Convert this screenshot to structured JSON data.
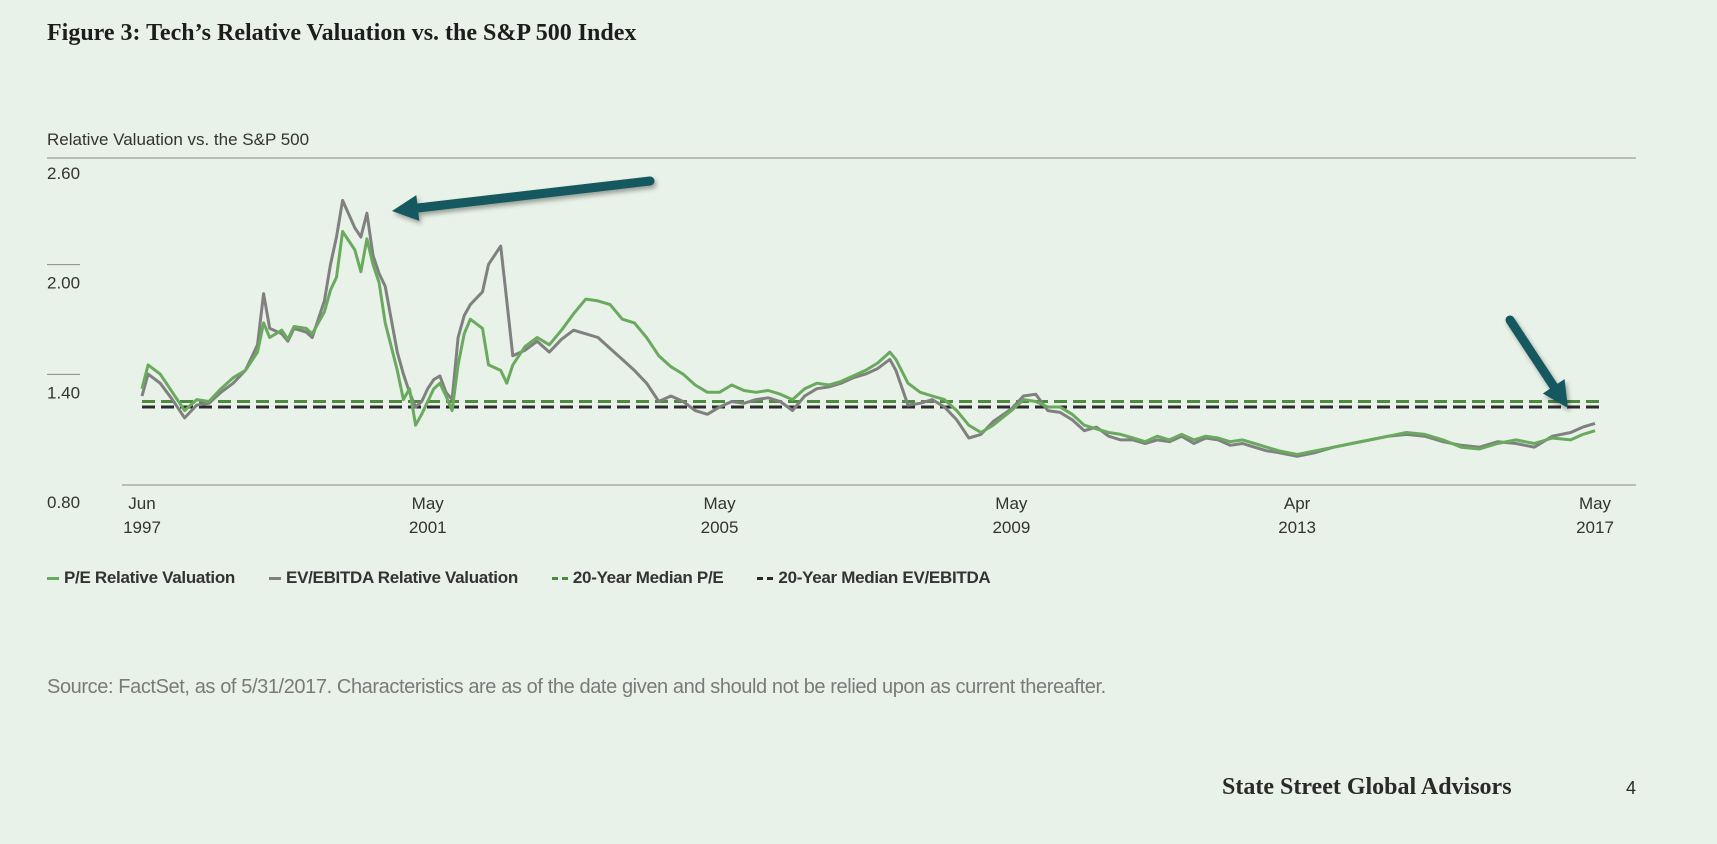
{
  "page": {
    "figure_title": "Figure 3: Tech’s Relative Valuation vs. the S&P 500 Index",
    "source": "Source: FactSet, as of 5/31/2017. Characteristics are as of the date given and should not be relied upon as current thereafter.",
    "brand": "State Street Global Advisors",
    "page_number": "4"
  },
  "colors": {
    "background": "#e8f2e8",
    "pe": "#6aaa5e",
    "ev": "#808080",
    "median_pe": "#4d8a3e",
    "median_ev": "#2b2b2b",
    "arrow": "#14585e"
  },
  "chart_data": {
    "type": "line",
    "ylabel": "Relative Valuation vs. the S&P 500",
    "ylim": [
      0.8,
      2.6
    ],
    "yticks": [
      "0.80",
      "1.40",
      "2.00",
      "2.60"
    ],
    "x_ticks": [
      {
        "date": "1997-06",
        "line1": "Jun",
        "line2": "1997"
      },
      {
        "date": "2001-05",
        "line1": "May",
        "line2": "2001"
      },
      {
        "date": "2005-05",
        "line1": "May",
        "line2": "2005"
      },
      {
        "date": "2009-05",
        "line1": "May",
        "line2": "2009"
      },
      {
        "date": "2013-04",
        "line1": "Apr",
        "line2": "2013"
      },
      {
        "date": "2017-05",
        "line1": "May",
        "line2": "2017"
      }
    ],
    "x_range": [
      "1997-06",
      "2017-05"
    ],
    "series": [
      {
        "name": "P/E Relative Valuation",
        "style": "solid",
        "points": [
          [
            "1997-06",
            1.42
          ],
          [
            "1997-07",
            1.55
          ],
          [
            "1997-09",
            1.5
          ],
          [
            "1997-11",
            1.4
          ],
          [
            "1998-01",
            1.3
          ],
          [
            "1998-03",
            1.36
          ],
          [
            "1998-05",
            1.35
          ],
          [
            "1998-07",
            1.42
          ],
          [
            "1998-09",
            1.48
          ],
          [
            "1998-11",
            1.52
          ],
          [
            "1999-01",
            1.62
          ],
          [
            "1999-02",
            1.78
          ],
          [
            "1999-03",
            1.7
          ],
          [
            "1999-05",
            1.74
          ],
          [
            "1999-06",
            1.69
          ],
          [
            "1999-07",
            1.76
          ],
          [
            "1999-09",
            1.75
          ],
          [
            "1999-10",
            1.72
          ],
          [
            "1999-12",
            1.84
          ],
          [
            "2000-01",
            1.96
          ],
          [
            "2000-02",
            2.03
          ],
          [
            "2000-03",
            2.28
          ],
          [
            "2000-05",
            2.18
          ],
          [
            "2000-06",
            2.06
          ],
          [
            "2000-07",
            2.24
          ],
          [
            "2000-08",
            2.1
          ],
          [
            "2000-09",
            2.0
          ],
          [
            "2000-10",
            1.78
          ],
          [
            "2000-12",
            1.52
          ],
          [
            "2001-01",
            1.36
          ],
          [
            "2001-02",
            1.42
          ],
          [
            "2001-03",
            1.22
          ],
          [
            "2001-04",
            1.28
          ],
          [
            "2001-05",
            1.35
          ],
          [
            "2001-06",
            1.42
          ],
          [
            "2001-07",
            1.45
          ],
          [
            "2001-08",
            1.38
          ],
          [
            "2001-09",
            1.3
          ],
          [
            "2001-10",
            1.55
          ],
          [
            "2001-11",
            1.72
          ],
          [
            "2001-12",
            1.8
          ],
          [
            "2002-02",
            1.75
          ],
          [
            "2002-03",
            1.55
          ],
          [
            "2002-05",
            1.52
          ],
          [
            "2002-06",
            1.45
          ],
          [
            "2002-07",
            1.55
          ],
          [
            "2002-09",
            1.65
          ],
          [
            "2002-11",
            1.7
          ],
          [
            "2003-01",
            1.66
          ],
          [
            "2003-03",
            1.74
          ],
          [
            "2003-05",
            1.83
          ],
          [
            "2003-07",
            1.91
          ],
          [
            "2003-09",
            1.9
          ],
          [
            "2003-11",
            1.88
          ],
          [
            "2004-01",
            1.8
          ],
          [
            "2004-03",
            1.78
          ],
          [
            "2004-05",
            1.7
          ],
          [
            "2004-07",
            1.6
          ],
          [
            "2004-09",
            1.54
          ],
          [
            "2004-11",
            1.5
          ],
          [
            "2005-01",
            1.44
          ],
          [
            "2005-03",
            1.4
          ],
          [
            "2005-05",
            1.4
          ],
          [
            "2005-07",
            1.44
          ],
          [
            "2005-09",
            1.41
          ],
          [
            "2005-11",
            1.4
          ],
          [
            "2006-01",
            1.41
          ],
          [
            "2006-03",
            1.39
          ],
          [
            "2006-05",
            1.36
          ],
          [
            "2006-07",
            1.42
          ],
          [
            "2006-09",
            1.45
          ],
          [
            "2006-11",
            1.44
          ],
          [
            "2007-01",
            1.46
          ],
          [
            "2007-03",
            1.49
          ],
          [
            "2007-05",
            1.52
          ],
          [
            "2007-07",
            1.56
          ],
          [
            "2007-09",
            1.62
          ],
          [
            "2007-10",
            1.58
          ],
          [
            "2007-12",
            1.45
          ],
          [
            "2008-02",
            1.4
          ],
          [
            "2008-04",
            1.38
          ],
          [
            "2008-06",
            1.36
          ],
          [
            "2008-08",
            1.3
          ],
          [
            "2008-10",
            1.22
          ],
          [
            "2008-12",
            1.18
          ],
          [
            "2009-02",
            1.22
          ],
          [
            "2009-05",
            1.3
          ],
          [
            "2009-07",
            1.36
          ],
          [
            "2009-09",
            1.35
          ],
          [
            "2009-11",
            1.32
          ],
          [
            "2010-01",
            1.32
          ],
          [
            "2010-03",
            1.28
          ],
          [
            "2010-05",
            1.22
          ],
          [
            "2010-07",
            1.2
          ],
          [
            "2010-09",
            1.18
          ],
          [
            "2010-11",
            1.17
          ],
          [
            "2011-01",
            1.15
          ],
          [
            "2011-03",
            1.13
          ],
          [
            "2011-05",
            1.16
          ],
          [
            "2011-07",
            1.14
          ],
          [
            "2011-09",
            1.17
          ],
          [
            "2011-11",
            1.14
          ],
          [
            "2012-01",
            1.16
          ],
          [
            "2012-03",
            1.15
          ],
          [
            "2012-05",
            1.13
          ],
          [
            "2012-07",
            1.14
          ],
          [
            "2012-09",
            1.12
          ],
          [
            "2012-11",
            1.1
          ],
          [
            "2013-01",
            1.08
          ],
          [
            "2013-04",
            1.06
          ],
          [
            "2013-07",
            1.08
          ],
          [
            "2013-10",
            1.1
          ],
          [
            "2014-01",
            1.12
          ],
          [
            "2014-04",
            1.14
          ],
          [
            "2014-07",
            1.16
          ],
          [
            "2014-10",
            1.18
          ],
          [
            "2015-01",
            1.17
          ],
          [
            "2015-04",
            1.14
          ],
          [
            "2015-07",
            1.1
          ],
          [
            "2015-10",
            1.09
          ],
          [
            "2016-01",
            1.12
          ],
          [
            "2016-04",
            1.14
          ],
          [
            "2016-07",
            1.12
          ],
          [
            "2016-10",
            1.15
          ],
          [
            "2017-01",
            1.14
          ],
          [
            "2017-03",
            1.17
          ],
          [
            "2017-05",
            1.19
          ]
        ]
      },
      {
        "name": "EV/EBITDA Relative Valuation",
        "style": "solid",
        "points": [
          [
            "1997-06",
            1.38
          ],
          [
            "1997-07",
            1.5
          ],
          [
            "1997-09",
            1.45
          ],
          [
            "1997-11",
            1.36
          ],
          [
            "1998-01",
            1.26
          ],
          [
            "1998-03",
            1.33
          ],
          [
            "1998-05",
            1.34
          ],
          [
            "1998-07",
            1.4
          ],
          [
            "1998-09",
            1.45
          ],
          [
            "1998-11",
            1.52
          ],
          [
            "1999-01",
            1.66
          ],
          [
            "1999-02",
            1.94
          ],
          [
            "1999-03",
            1.75
          ],
          [
            "1999-05",
            1.72
          ],
          [
            "1999-06",
            1.68
          ],
          [
            "1999-07",
            1.75
          ],
          [
            "1999-09",
            1.73
          ],
          [
            "1999-10",
            1.7
          ],
          [
            "1999-12",
            1.9
          ],
          [
            "2000-01",
            2.1
          ],
          [
            "2000-02",
            2.25
          ],
          [
            "2000-03",
            2.45
          ],
          [
            "2000-05",
            2.3
          ],
          [
            "2000-06",
            2.25
          ],
          [
            "2000-07",
            2.38
          ],
          [
            "2000-08",
            2.15
          ],
          [
            "2000-09",
            2.05
          ],
          [
            "2000-10",
            1.98
          ],
          [
            "2000-12",
            1.62
          ],
          [
            "2001-01",
            1.5
          ],
          [
            "2001-02",
            1.4
          ],
          [
            "2001-03",
            1.32
          ],
          [
            "2001-04",
            1.35
          ],
          [
            "2001-05",
            1.42
          ],
          [
            "2001-06",
            1.47
          ],
          [
            "2001-07",
            1.49
          ],
          [
            "2001-08",
            1.4
          ],
          [
            "2001-09",
            1.36
          ],
          [
            "2001-10",
            1.7
          ],
          [
            "2001-11",
            1.82
          ],
          [
            "2001-12",
            1.88
          ],
          [
            "2002-02",
            1.95
          ],
          [
            "2002-03",
            2.1
          ],
          [
            "2002-05",
            2.2
          ],
          [
            "2002-06",
            1.9
          ],
          [
            "2002-07",
            1.6
          ],
          [
            "2002-09",
            1.63
          ],
          [
            "2002-11",
            1.68
          ],
          [
            "2003-01",
            1.62
          ],
          [
            "2003-03",
            1.69
          ],
          [
            "2003-05",
            1.74
          ],
          [
            "2003-07",
            1.72
          ],
          [
            "2003-09",
            1.7
          ],
          [
            "2003-11",
            1.64
          ],
          [
            "2004-01",
            1.58
          ],
          [
            "2004-03",
            1.52
          ],
          [
            "2004-05",
            1.45
          ],
          [
            "2004-07",
            1.35
          ],
          [
            "2004-09",
            1.38
          ],
          [
            "2004-11",
            1.35
          ],
          [
            "2005-01",
            1.3
          ],
          [
            "2005-03",
            1.28
          ],
          [
            "2005-05",
            1.32
          ],
          [
            "2005-07",
            1.35
          ],
          [
            "2005-09",
            1.34
          ],
          [
            "2005-11",
            1.36
          ],
          [
            "2006-01",
            1.37
          ],
          [
            "2006-03",
            1.35
          ],
          [
            "2006-05",
            1.3
          ],
          [
            "2006-07",
            1.38
          ],
          [
            "2006-09",
            1.42
          ],
          [
            "2006-11",
            1.43
          ],
          [
            "2007-01",
            1.45
          ],
          [
            "2007-03",
            1.48
          ],
          [
            "2007-05",
            1.5
          ],
          [
            "2007-07",
            1.53
          ],
          [
            "2007-09",
            1.58
          ],
          [
            "2007-10",
            1.52
          ],
          [
            "2007-12",
            1.33
          ],
          [
            "2008-02",
            1.34
          ],
          [
            "2008-04",
            1.36
          ],
          [
            "2008-06",
            1.32
          ],
          [
            "2008-08",
            1.25
          ],
          [
            "2008-10",
            1.15
          ],
          [
            "2008-12",
            1.17
          ],
          [
            "2009-02",
            1.24
          ],
          [
            "2009-05",
            1.31
          ],
          [
            "2009-07",
            1.38
          ],
          [
            "2009-09",
            1.39
          ],
          [
            "2009-11",
            1.3
          ],
          [
            "2010-01",
            1.29
          ],
          [
            "2010-03",
            1.25
          ],
          [
            "2010-05",
            1.19
          ],
          [
            "2010-07",
            1.21
          ],
          [
            "2010-09",
            1.16
          ],
          [
            "2010-11",
            1.14
          ],
          [
            "2011-01",
            1.14
          ],
          [
            "2011-03",
            1.12
          ],
          [
            "2011-05",
            1.14
          ],
          [
            "2011-07",
            1.13
          ],
          [
            "2011-09",
            1.16
          ],
          [
            "2011-11",
            1.12
          ],
          [
            "2012-01",
            1.15
          ],
          [
            "2012-03",
            1.14
          ],
          [
            "2012-05",
            1.11
          ],
          [
            "2012-07",
            1.12
          ],
          [
            "2012-09",
            1.1
          ],
          [
            "2012-11",
            1.08
          ],
          [
            "2013-01",
            1.07
          ],
          [
            "2013-04",
            1.05
          ],
          [
            "2013-07",
            1.07
          ],
          [
            "2013-10",
            1.1
          ],
          [
            "2014-01",
            1.12
          ],
          [
            "2014-04",
            1.14
          ],
          [
            "2014-07",
            1.16
          ],
          [
            "2014-10",
            1.17
          ],
          [
            "2015-01",
            1.16
          ],
          [
            "2015-04",
            1.13
          ],
          [
            "2015-07",
            1.11
          ],
          [
            "2015-10",
            1.1
          ],
          [
            "2016-01",
            1.13
          ],
          [
            "2016-04",
            1.12
          ],
          [
            "2016-07",
            1.1
          ],
          [
            "2016-10",
            1.16
          ],
          [
            "2017-01",
            1.18
          ],
          [
            "2017-03",
            1.21
          ],
          [
            "2017-05",
            1.23
          ]
        ]
      },
      {
        "name": "20-Year Median P/E",
        "style": "dashed",
        "value": 1.35
      },
      {
        "name": "20-Year Median EV/EBITDA",
        "style": "dashed",
        "value": 1.32
      }
    ],
    "annotations": [
      {
        "kind": "arrow",
        "points_to": "2000-10"
      },
      {
        "kind": "arrow",
        "points_to": "2017-05"
      }
    ],
    "grid": false,
    "legend_position": "bottom"
  }
}
